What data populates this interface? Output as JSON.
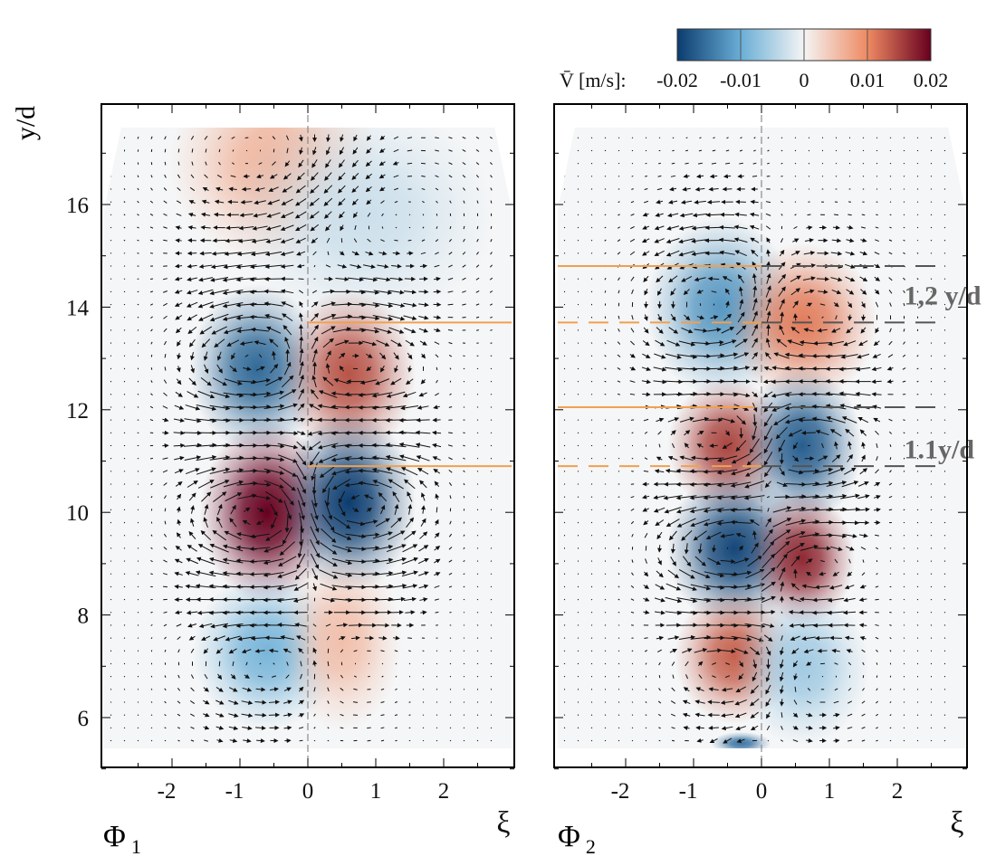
{
  "chart_data": [
    {
      "type": "heatmap",
      "panel_label": "Φ",
      "panel_subscript": "1",
      "xlabel": "ξ",
      "ylabel": "y/d",
      "xlim": [
        -3,
        3
      ],
      "ylim": [
        5,
        18
      ],
      "xticks": [
        "-2",
        "-1",
        "0",
        "1",
        "2"
      ],
      "yticks": [
        "6",
        "8",
        "10",
        "12",
        "14",
        "16"
      ],
      "data_extent": {
        "y": [
          5.4,
          17.5
        ]
      },
      "centerline_xi": 0,
      "features": [
        {
          "xi": -0.5,
          "y": 16.8,
          "value": 0.006,
          "sx": 0.7,
          "sy": 0.9
        },
        {
          "xi": 0.8,
          "y": 15.8,
          "value": -0.003,
          "sx": 0.9,
          "sy": 1.0
        },
        {
          "xi": -0.75,
          "y": 12.8,
          "value": -0.016,
          "sx": 0.45,
          "sy": 0.75
        },
        {
          "xi": 0.6,
          "y": 12.7,
          "value": 0.014,
          "sx": 0.45,
          "sy": 0.75
        },
        {
          "xi": -0.6,
          "y": 10.0,
          "value": 0.021,
          "sx": 0.45,
          "sy": 0.8
        },
        {
          "xi": 0.6,
          "y": 10.2,
          "value": -0.021,
          "sx": 0.45,
          "sy": 0.8
        },
        {
          "xi": -0.6,
          "y": 7.3,
          "value": -0.009,
          "sx": 0.5,
          "sy": 0.7
        },
        {
          "xi": 0.5,
          "y": 7.5,
          "value": 0.005,
          "sx": 0.4,
          "sy": 0.8
        }
      ],
      "reference_lines": [
        {
          "y": 13.7,
          "xi": [
            0,
            3
          ],
          "color": "#f0a050",
          "style": "solid"
        },
        {
          "y": 10.9,
          "xi": [
            0,
            3
          ],
          "color": "#f0a050",
          "style": "solid"
        }
      ],
      "annotations": []
    },
    {
      "type": "heatmap",
      "panel_label": "Φ",
      "panel_subscript": "2",
      "xlabel": "ξ",
      "xlim": [
        -3,
        3
      ],
      "ylim": [
        5,
        18
      ],
      "xticks": [
        "-2",
        "-1",
        "0",
        "1",
        "2"
      ],
      "data_extent": {
        "y": [
          5.4,
          17.5
        ]
      },
      "centerline_xi": 0,
      "features": [
        {
          "xi": -0.6,
          "y": 14.0,
          "value": -0.012,
          "sx": 0.5,
          "sy": 0.8
        },
        {
          "xi": 0.6,
          "y": 13.7,
          "value": 0.011,
          "sx": 0.5,
          "sy": 0.7
        },
        {
          "xi": -0.5,
          "y": 11.3,
          "value": 0.015,
          "sx": 0.4,
          "sy": 0.6
        },
        {
          "xi": 0.6,
          "y": 11.3,
          "value": -0.017,
          "sx": 0.4,
          "sy": 0.7
        },
        {
          "xi": -0.4,
          "y": 9.3,
          "value": -0.019,
          "sx": 0.45,
          "sy": 0.7
        },
        {
          "xi": 0.6,
          "y": 9.1,
          "value": 0.017,
          "sx": 0.35,
          "sy": 0.6
        },
        {
          "xi": -0.4,
          "y": 7.2,
          "value": 0.013,
          "sx": 0.4,
          "sy": 0.6
        },
        {
          "xi": 0.6,
          "y": 7.0,
          "value": -0.006,
          "sx": 0.45,
          "sy": 0.7
        },
        {
          "xi": -0.3,
          "y": 5.5,
          "value": -0.015,
          "sx": 0.2,
          "sy": 0.1
        }
      ],
      "reference_lines": [
        {
          "y": 14.8,
          "xi": [
            -3,
            0
          ],
          "color": "#f0a050",
          "style": "solid"
        },
        {
          "y": 14.8,
          "xi": [
            0,
            2.6
          ],
          "color": "#555555",
          "style": "dashed"
        },
        {
          "y": 13.7,
          "xi": [
            -3,
            0
          ],
          "color": "#f0a050",
          "style": "dashed"
        },
        {
          "y": 13.7,
          "xi": [
            0,
            2.6
          ],
          "color": "#555555",
          "style": "dashed"
        },
        {
          "y": 12.05,
          "xi": [
            -3,
            -0.1
          ],
          "color": "#f0a050",
          "style": "solid"
        },
        {
          "y": 12.05,
          "xi": [
            0,
            2.6
          ],
          "color": "#555555",
          "style": "dashed"
        },
        {
          "y": 10.9,
          "xi": [
            -3,
            0
          ],
          "color": "#f0a050",
          "style": "dashed"
        },
        {
          "y": 10.9,
          "xi": [
            0,
            2.6
          ],
          "color": "#555555",
          "style": "dashed"
        }
      ],
      "annotations": [
        {
          "text": "1,2 y/d",
          "xi": 2.1,
          "y": 14.05
        },
        {
          "text": "1.1y/d",
          "xi": 2.1,
          "y": 11.05
        }
      ]
    }
  ],
  "colorbar": {
    "label": "V̄ [m/s]:",
    "ticks": [
      "-0.02",
      "-0.01",
      "0",
      "0.01",
      "0.02"
    ],
    "range": [
      -0.02,
      0.02
    ],
    "colors": [
      "#0b3c6f",
      "#6aaed6",
      "#f4f4f4",
      "#ee8a62",
      "#67001f"
    ]
  }
}
